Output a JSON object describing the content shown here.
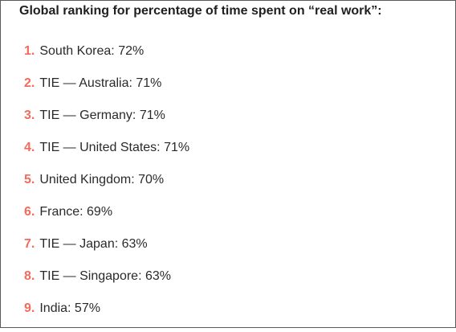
{
  "title": "Global ranking for percentage of time spent on “real work”:",
  "colors": {
    "rank_number": "#f26b5b",
    "text": "#2a2a2a"
  },
  "rankings": [
    {
      "number": "1.",
      "text": "South Korea: 72%"
    },
    {
      "number": "2.",
      "text": "TIE — Australia: 71%"
    },
    {
      "number": "3.",
      "text": "TIE — Germany: 71%"
    },
    {
      "number": "4.",
      "text": "TIE — United States: 71%"
    },
    {
      "number": "5.",
      "text": "United Kingdom: 70%"
    },
    {
      "number": "6.",
      "text": "France: 69%"
    },
    {
      "number": "7.",
      "text": "TIE — Japan: 63%"
    },
    {
      "number": "8.",
      "text": "TIE — Singapore: 63%"
    },
    {
      "number": "9.",
      "text": "India: 57%"
    }
  ]
}
